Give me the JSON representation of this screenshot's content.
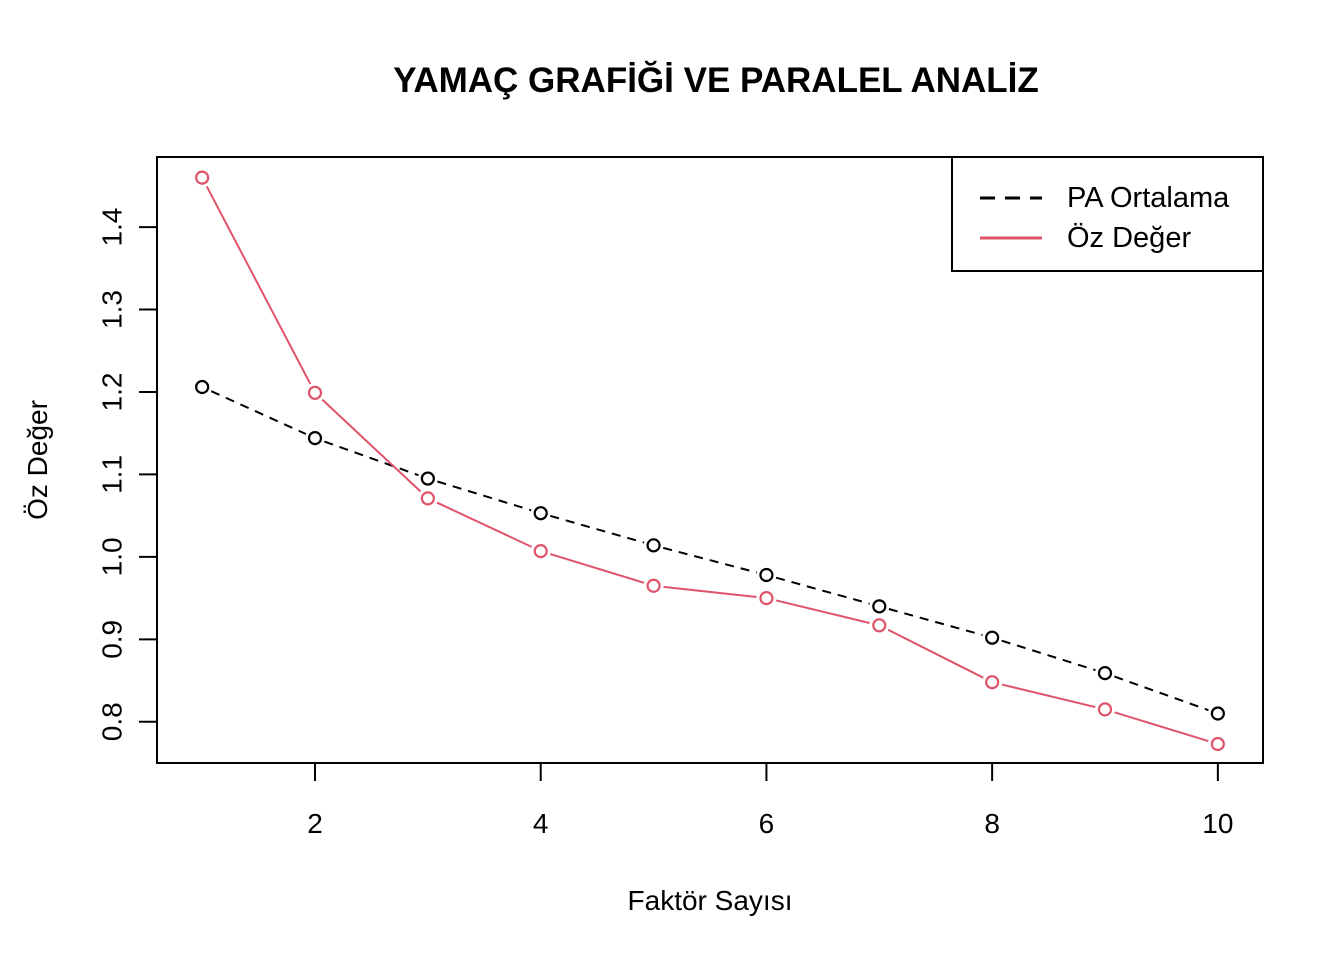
{
  "chart_data": {
    "type": "line",
    "title": "YAMAÇ GRAFİĞİ VE PARALEL ANALİZ",
    "xlabel": "Faktör Sayısı",
    "ylabel": "Öz Değer",
    "x": [
      1,
      2,
      3,
      4,
      5,
      6,
      7,
      8,
      9,
      10
    ],
    "xlim": [
      0.6,
      10.4
    ],
    "ylim": [
      0.75,
      1.485
    ],
    "xticks": [
      2,
      4,
      6,
      8,
      10
    ],
    "yticks": [
      0.8,
      0.9,
      1.0,
      1.1,
      1.2,
      1.3,
      1.4
    ],
    "xtick_labels": [
      "2",
      "4",
      "6",
      "8",
      "10"
    ],
    "ytick_labels": [
      "0.8",
      "0.9",
      "1.0",
      "1.1",
      "1.2",
      "1.3",
      "1.4"
    ],
    "grid": false,
    "legend_position": "top-right",
    "series": [
      {
        "name": "PA Ortalama",
        "color": "#000000",
        "line_style": "dashed",
        "values": [
          1.206,
          1.144,
          1.095,
          1.053,
          1.014,
          0.978,
          0.94,
          0.902,
          0.859,
          0.81
        ]
      },
      {
        "name": "Öz Değer",
        "color": "#DF536B",
        "line_style": "solid",
        "values": [
          1.46,
          1.199,
          1.071,
          1.007,
          0.965,
          0.95,
          0.917,
          0.848,
          0.815,
          0.773
        ]
      }
    ]
  }
}
